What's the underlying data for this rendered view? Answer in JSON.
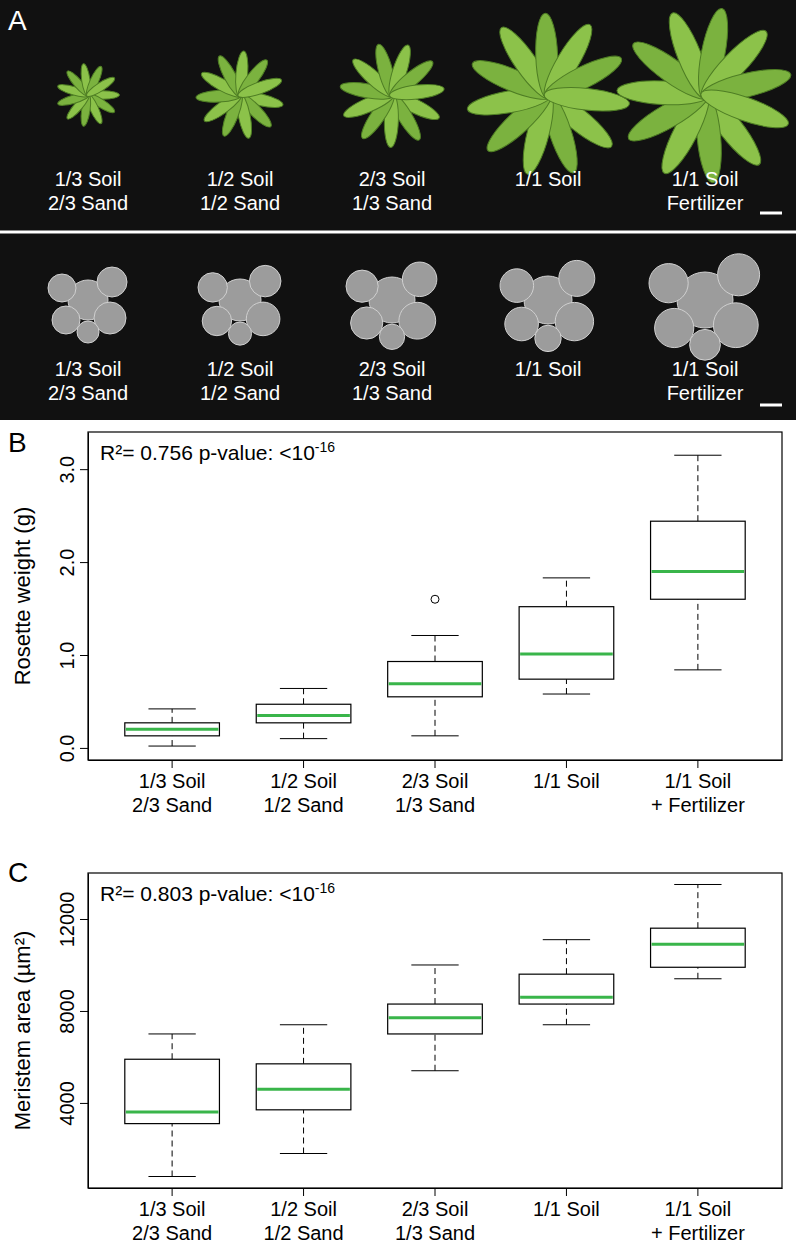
{
  "chart_data": [
    {
      "type": "image",
      "label": "A",
      "rows": [
        [
          "1/3 Soil\n2/3 Sand",
          "1/2 Soil\n1/2 Sand",
          "2/3 Soil\n1/3 Sand",
          "1/1 Soil",
          "1/1 Soil\nFertilizer"
        ],
        [
          "1/3 Soil\n2/3 Sand",
          "1/2 Soil\n1/2 Sand",
          "2/3 Soil\n1/3 Sand",
          "1/1 Soil",
          "1/1 Soil\nFertilizer"
        ]
      ]
    },
    {
      "type": "box",
      "label": "B",
      "annotation": {
        "text": "R²= 0.756 p-value: <10",
        "superscript": "-16"
      },
      "y_label": "Rosette weight (g)",
      "categories": [
        "1/3 Soil\n2/3 Sand",
        "1/2 Soil\n1/2 Sand",
        "2/3 Soil\n1/3 Sand",
        "1/1 Soil",
        "1/1 Soil\n+ Fertilizer"
      ],
      "whisker_low": [
        0.02,
        0.1,
        0.13,
        0.58,
        0.84
      ],
      "q1": [
        0.13,
        0.27,
        0.55,
        0.74,
        1.6
      ],
      "median": [
        0.2,
        0.35,
        0.69,
        1.01,
        1.9
      ],
      "q3": [
        0.27,
        0.47,
        0.93,
        1.52,
        2.44
      ],
      "whisker_high": [
        0.42,
        0.64,
        1.21,
        1.83,
        3.15
      ],
      "outliers": [
        [],
        [],
        [
          1.6
        ],
        [],
        []
      ],
      "color": "#39b54a",
      "ylim": [
        -0.13,
        3.4
      ],
      "yticks": [
        {
          "value": 0,
          "label": "0.0"
        },
        {
          "value": 1,
          "label": "1.0"
        },
        {
          "value": 2,
          "label": "2.0"
        },
        {
          "value": 3,
          "label": "3.0"
        }
      ]
    },
    {
      "type": "box",
      "label": "C",
      "annotation": {
        "text": "R²= 0.803 p-value: <10",
        "superscript": "-16"
      },
      "y_label": "Meristem area (µm²)",
      "categories": [
        "1/3 Soil\n2/3 Sand",
        "1/2 Soil\n1/2 Sand",
        "2/3 Soil\n1/3 Sand",
        "1/1 Soil",
        "1/1 Soil\n+ Fertilizer"
      ],
      "whisker_low": [
        800,
        1800,
        5400,
        7400,
        9400
      ],
      "q1": [
        3100,
        3700,
        7000,
        8300,
        9900
      ],
      "median": [
        3600,
        4600,
        7700,
        8600,
        10900
      ],
      "q3": [
        5900,
        5700,
        8300,
        9600,
        11600
      ],
      "whisker_high": [
        7000,
        7400,
        10000,
        11100,
        13500
      ],
      "outliers": [
        [],
        [],
        [],
        [],
        []
      ],
      "color": "#39b54a",
      "ylim": [
        300,
        14000
      ],
      "yticks": [
        4000,
        8000,
        12000
      ]
    }
  ]
}
